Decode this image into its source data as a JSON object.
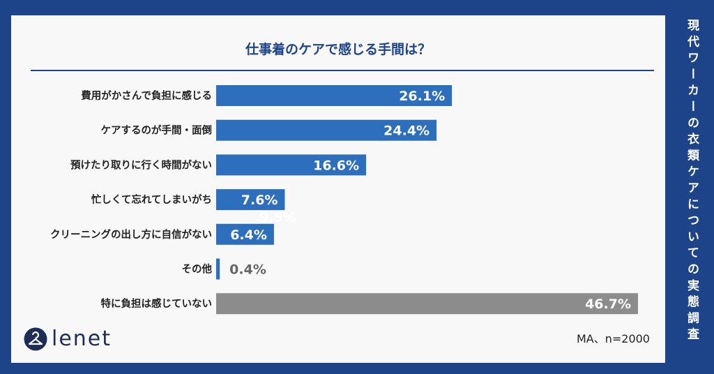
{
  "side_title": "現代ワーカーの衣類ケアについての実態調査",
  "logo_text": "lenet",
  "note": "MA、n=2000",
  "colors": {
    "background": "#1d4489",
    "bar": "#2e6fbd",
    "bar_none": "#8c8c8c",
    "label_outside": "#666666"
  },
  "chart_data": {
    "type": "bar",
    "orientation": "horizontal",
    "title": "仕事着のケアで感じる手間は？",
    "categories": [
      "費用がかさんで負担に感じる",
      "ケアするのが手間・面倒",
      "預けたり取りに行く時間がない",
      "忙しくて忘れてしまいがち",
      "クリーニングの出し方に自信がない",
      "その他",
      "特に負担は感じていない"
    ],
    "values": [
      26.1,
      24.4,
      16.6,
      7.6,
      6.4,
      0.4,
      46.7
    ],
    "value_labels": [
      "26.1%",
      "24.4%",
      "16.6%",
      "7.6%",
      "6.4%",
      "0.4%",
      "46.7%"
    ],
    "stray_label": "9.5%",
    "xlim": [
      0,
      46.7
    ],
    "grid": false,
    "legend": "none"
  }
}
